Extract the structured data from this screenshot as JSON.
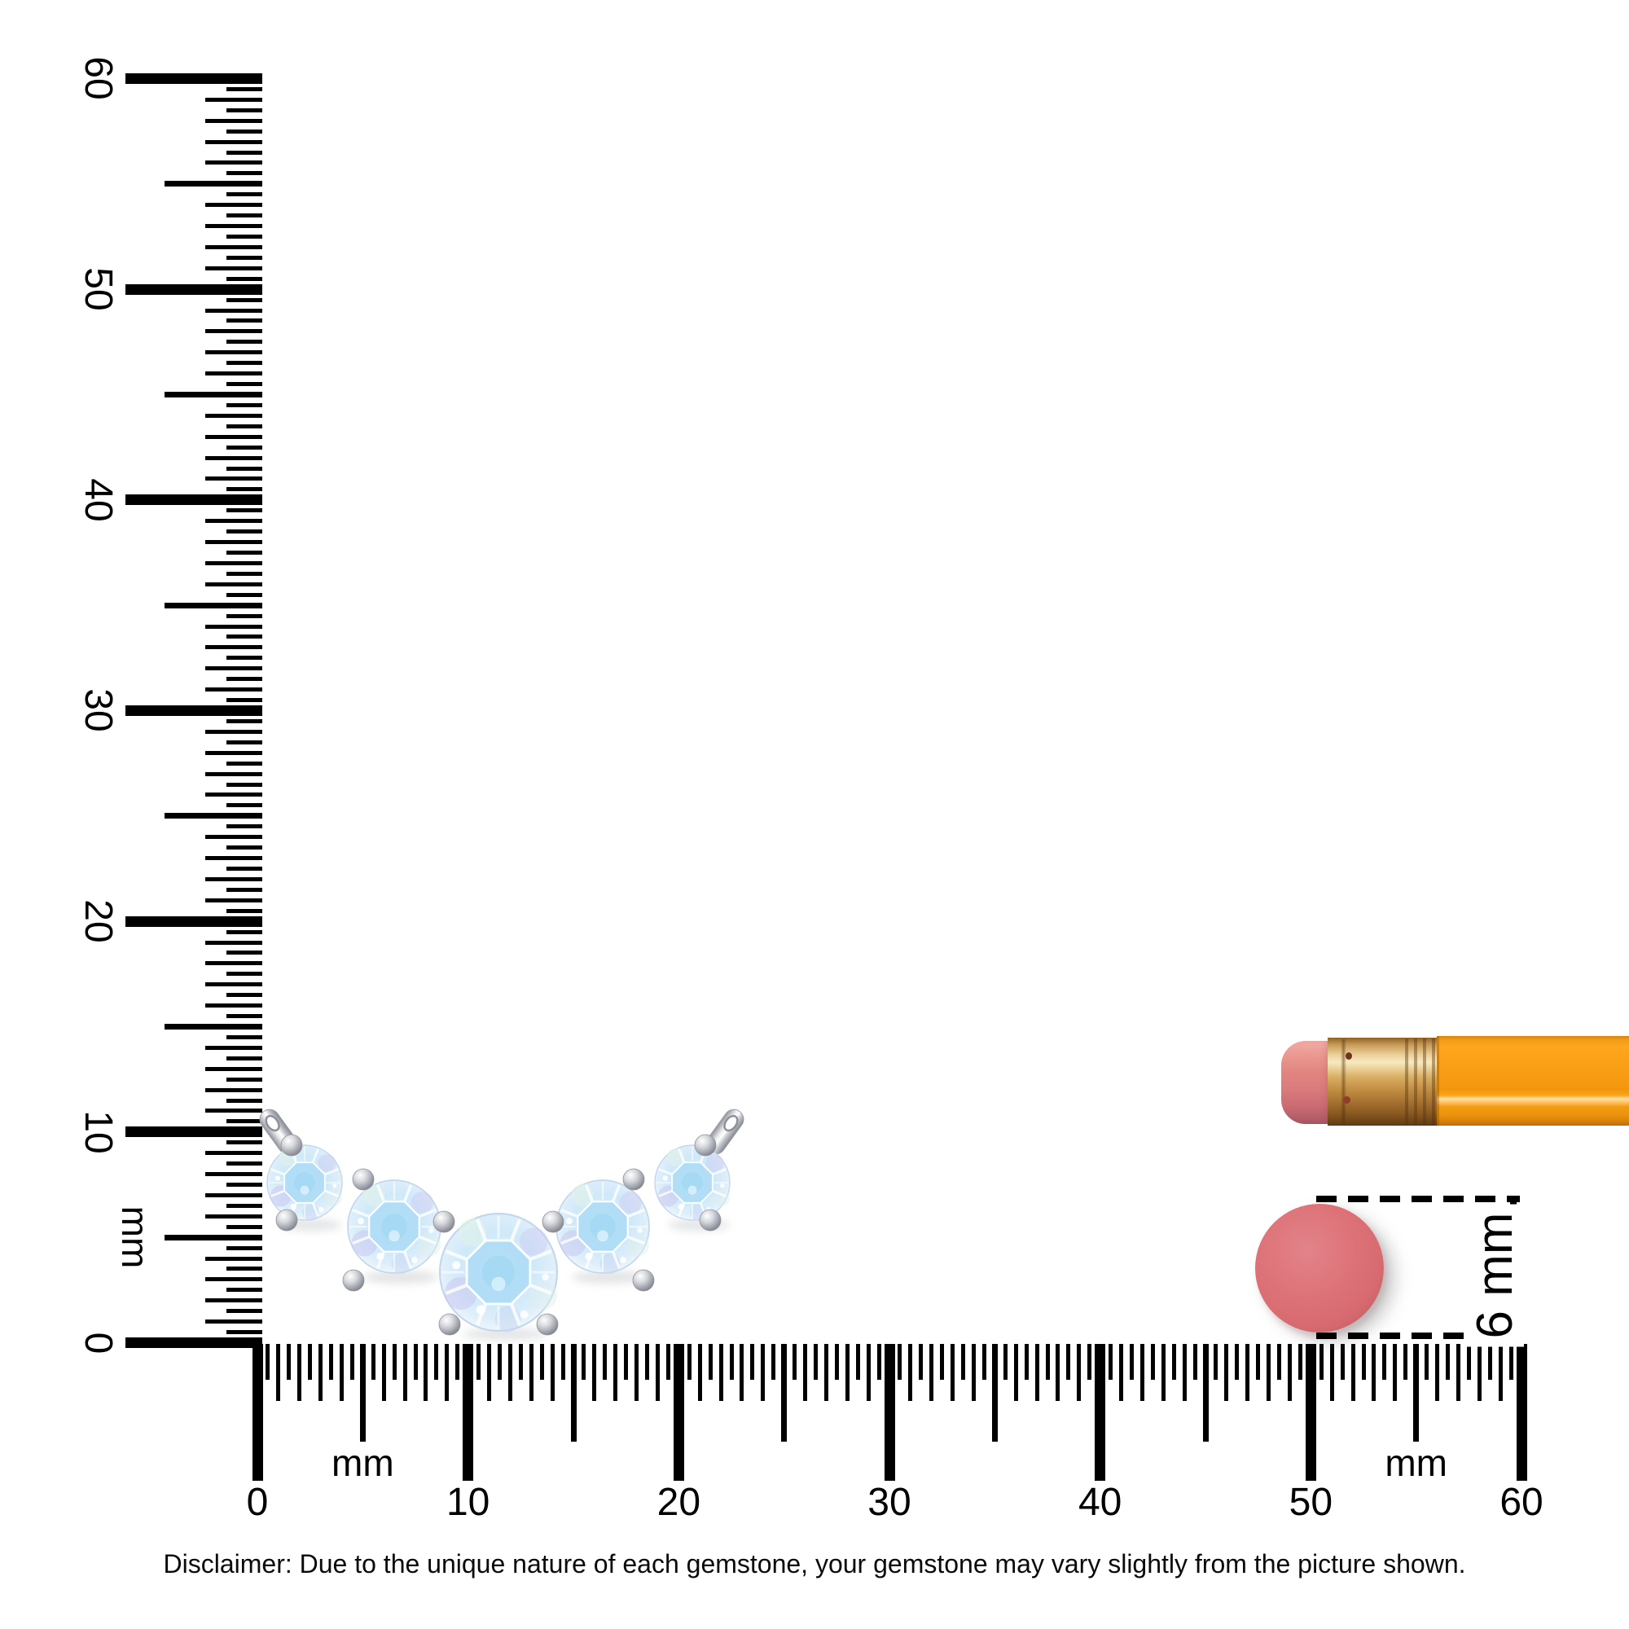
{
  "rulers": {
    "vertical": {
      "unit_label": "mm",
      "min_mm": 0,
      "max_mm": 60,
      "number_labels": [
        "0",
        "10",
        "20",
        "30",
        "40",
        "50",
        "60"
      ]
    },
    "horizontal": {
      "unit_label": "mm",
      "min_mm": 0,
      "max_mm": 60,
      "number_labels": [
        "0",
        "10",
        "20",
        "30",
        "40",
        "50",
        "60"
      ]
    }
  },
  "measurement_callout": {
    "label": "6 mm"
  },
  "disclaimer": "Disclaimer: Due to the unique nature of each gemstone, your gemstone may vary slightly from the picture shown.",
  "objects": {
    "pendant": {
      "description": "five-stone round gemstone pendant with two bails",
      "stone_count": 5
    },
    "pencil": {
      "parts": [
        "eraser",
        "ferrule",
        "body"
      ]
    },
    "eraser_disc": {
      "diameter_label": "6 mm"
    }
  },
  "colors": {
    "ink": "#000000",
    "background": "#FFFFFF",
    "gem_blue": "#B7E2F8",
    "gem_rim": "#E8F3FB",
    "metal_silver": "#C4C7CE",
    "pencil_orange": "#F89E15",
    "pencil_ferrule_gold": "#D9AE63",
    "pencil_eraser_pink": "#DA7B7E",
    "disc_pink": "#DD7378"
  }
}
